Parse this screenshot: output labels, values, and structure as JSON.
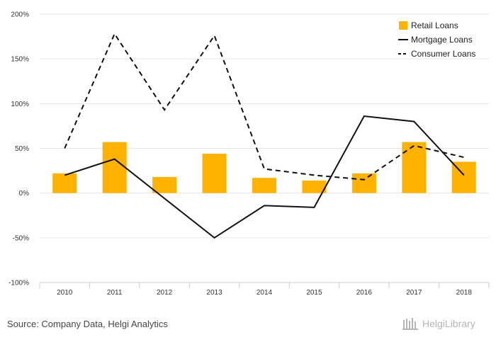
{
  "chart_data": {
    "type": "bar",
    "categories": [
      "2010",
      "2011",
      "2012",
      "2013",
      "2014",
      "2015",
      "2016",
      "2017",
      "2018"
    ],
    "series": [
      {
        "name": "Retail Loans",
        "kind": "bar",
        "color": "#FFB300",
        "values": [
          22,
          57,
          18,
          44,
          17,
          14,
          22,
          57,
          35
        ]
      },
      {
        "name": "Mortgage Loans",
        "kind": "line",
        "style": "solid",
        "color": "#111111",
        "values": [
          20,
          38,
          -6,
          -50,
          -14,
          -16,
          86,
          80,
          20
        ]
      },
      {
        "name": "Consumer Loans",
        "kind": "line",
        "style": "dashed",
        "color": "#111111",
        "values": [
          50,
          178,
          93,
          176,
          27,
          20,
          15,
          53,
          40
        ]
      }
    ],
    "y_ticks": [
      "200%",
      "150%",
      "100%",
      "50%",
      "0%",
      "-50%",
      "-100%"
    ],
    "y_tick_values": [
      200,
      150,
      100,
      50,
      0,
      -50,
      -100
    ],
    "ylim": [
      -100,
      200
    ],
    "grid": "horizontal",
    "legend_position": "top-right"
  },
  "source": "Source: Company Data, Helgi Analytics",
  "brand": "HelgiLibrary"
}
